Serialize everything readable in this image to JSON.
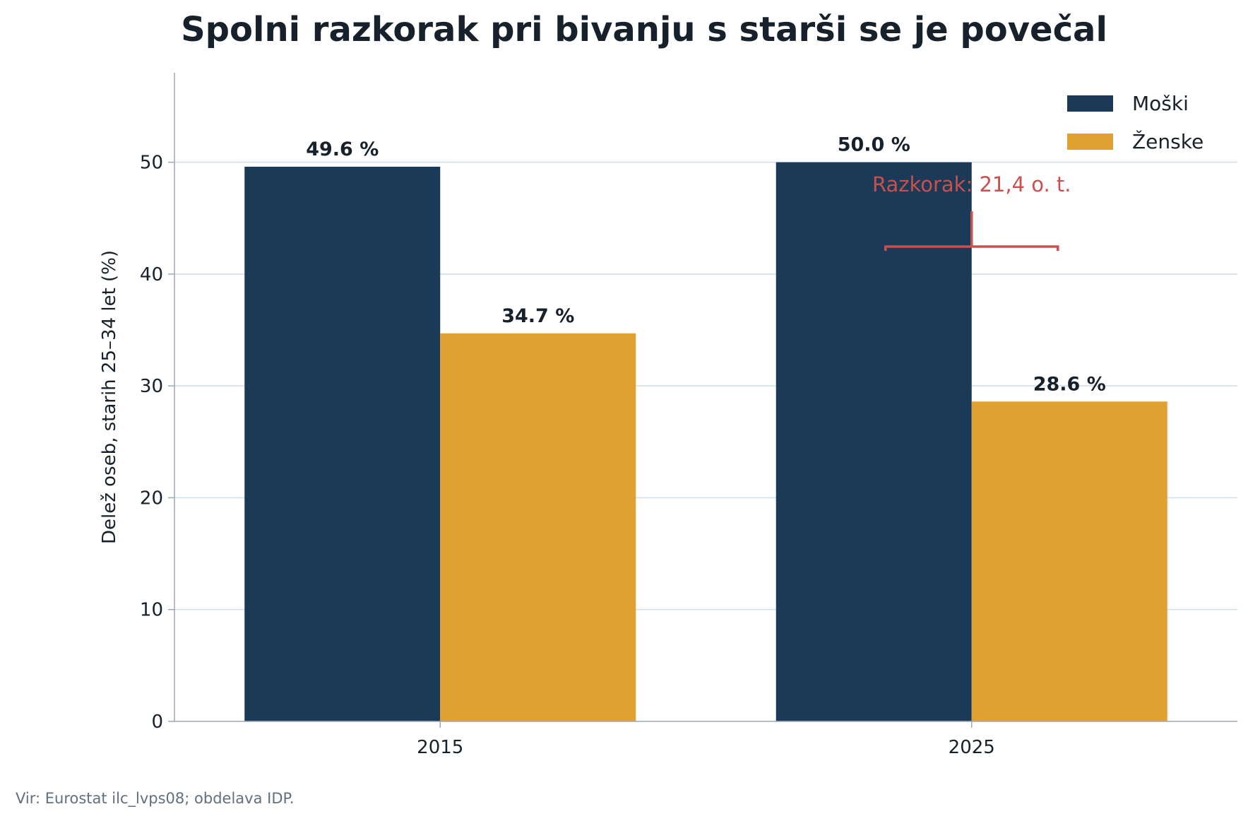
{
  "chart_data": {
    "type": "bar",
    "title": "Spolni razkorak pri bivanju s starši se je povečal",
    "xlabel": "",
    "ylabel": "Delež oseb, starih 25–34 let (%)",
    "categories": [
      "2015",
      "2025"
    ],
    "series": [
      {
        "name": "Moški",
        "values": [
          49.6,
          50.0
        ],
        "color": "#1b3a57",
        "labels": [
          "49.6 %",
          "50.0 %"
        ]
      },
      {
        "name": "Ženske",
        "values": [
          34.7,
          28.6
        ],
        "color": "#e0a130",
        "labels": [
          "34.7 %",
          "28.6 %"
        ]
      }
    ],
    "ylim": [
      0,
      58
    ],
    "yticks": [
      "0",
      "10",
      "20",
      "30",
      "40",
      "50"
    ],
    "grid": true,
    "legend": "top-right",
    "annotation": {
      "text": "Razkorak: 21,4 o. t.",
      "category": "2025",
      "color": "#c8504e",
      "from_value": 50.0,
      "to_value": 28.6
    },
    "source": "Vir: Eurostat ilc_lvps08; obdelava IDP."
  }
}
